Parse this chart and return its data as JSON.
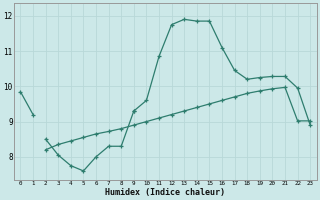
{
  "x": [
    0,
    1,
    2,
    3,
    4,
    5,
    6,
    7,
    8,
    9,
    10,
    11,
    12,
    13,
    14,
    15,
    16,
    17,
    18,
    19,
    20,
    21,
    22,
    23
  ],
  "line1": [
    9.85,
    9.2,
    null,
    null,
    null,
    null,
    null,
    null,
    null,
    9.3,
    9.6,
    10.85,
    11.75,
    11.9,
    11.85,
    11.85,
    11.1,
    10.45,
    10.2,
    10.25,
    10.28,
    10.28,
    9.95,
    8.9
  ],
  "line2": [
    null,
    null,
    8.5,
    8.05,
    7.75,
    7.6,
    8.0,
    8.3,
    8.3,
    9.3,
    null,
    null,
    null,
    null,
    null,
    null,
    null,
    null,
    null,
    null,
    null,
    null,
    null,
    null
  ],
  "line3": [
    null,
    null,
    8.2,
    8.35,
    8.45,
    8.55,
    8.65,
    8.72,
    8.8,
    8.9,
    9.0,
    9.1,
    9.2,
    9.3,
    9.4,
    9.5,
    9.6,
    9.7,
    9.8,
    9.87,
    9.93,
    9.97,
    9.02,
    9.02
  ],
  "bg_color": "#cce8e8",
  "grid_color": "#b8d8d8",
  "line_color": "#2e7d6e",
  "xlabel": "Humidex (Indice chaleur)",
  "ylabel_ticks": [
    8,
    9,
    10,
    11,
    12
  ],
  "xlim": [
    -0.5,
    23.5
  ],
  "ylim": [
    7.35,
    12.35
  ],
  "figw": 3.2,
  "figh": 2.0,
  "dpi": 100
}
